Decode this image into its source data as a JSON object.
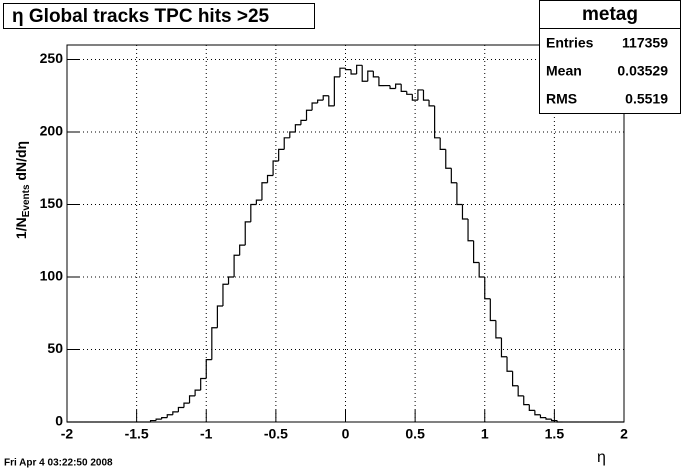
{
  "chart_data": {
    "type": "histogram",
    "title": "η Global tracks TPC hits >25",
    "x_label": "η",
    "y_label": [
      "1/N",
      "Events",
      " dN/dη"
    ],
    "footer": "Fri Apr  4 03:22:50 2008",
    "color": "#000000",
    "grid": true,
    "bins": [
      -2,
      -1.96,
      -1.92,
      -1.88,
      -1.84,
      -1.8,
      -1.76,
      -1.72,
      -1.68,
      -1.64,
      -1.6,
      -1.56,
      -1.52,
      -1.48,
      -1.44,
      -1.4,
      -1.36,
      -1.32,
      -1.28,
      -1.24,
      -1.2,
      -1.16,
      -1.12,
      -1.08,
      -1.04,
      -1,
      -0.96,
      -0.92,
      -0.88,
      -0.84,
      -0.8,
      -0.76,
      -0.72,
      -0.68,
      -0.64,
      -0.6,
      -0.56,
      -0.52,
      -0.48,
      -0.44,
      -0.4,
      -0.36,
      -0.32,
      -0.28,
      -0.24,
      -0.2,
      -0.16,
      -0.12,
      -0.08,
      -0.04,
      0,
      0.04,
      0.08,
      0.12,
      0.16,
      0.2,
      0.24,
      0.28,
      0.32,
      0.36,
      0.4,
      0.44,
      0.48,
      0.52,
      0.56,
      0.6,
      0.64,
      0.68,
      0.72,
      0.76,
      0.8,
      0.84,
      0.88,
      0.92,
      0.96,
      1,
      1.04,
      1.08,
      1.12,
      1.16,
      1.2,
      1.24,
      1.28,
      1.32,
      1.36,
      1.4,
      1.44,
      1.48,
      1.52,
      1.56,
      1.6,
      1.64,
      1.68,
      1.72,
      1.76,
      1.8,
      1.84,
      1.88,
      1.92,
      1.96,
      2
    ],
    "values": [
      0,
      0,
      0,
      0,
      0,
      0,
      0,
      0,
      0,
      0,
      0,
      0,
      0,
      0,
      0,
      1,
      2,
      3,
      5,
      7,
      10,
      13,
      18,
      22,
      30,
      43,
      65,
      80,
      95,
      100,
      115,
      122,
      138,
      150,
      153,
      165,
      170,
      180,
      188,
      196,
      200,
      205,
      208,
      215,
      220,
      222,
      225,
      218,
      238,
      244,
      243,
      240,
      246,
      235,
      242,
      238,
      232,
      232,
      230,
      233,
      228,
      226,
      222,
      229,
      222,
      218,
      196,
      188,
      175,
      165,
      150,
      140,
      125,
      110,
      100,
      85,
      70,
      58,
      45,
      35,
      25,
      18,
      12,
      8,
      5,
      3,
      2,
      1,
      0,
      0,
      0,
      0,
      0,
      0,
      0,
      0,
      0,
      0,
      0,
      0
    ],
    "xlim": [
      -2,
      2
    ],
    "xticks": [
      -2,
      -1.5,
      -1,
      -0.5,
      0,
      0.5,
      1,
      1.5,
      2
    ],
    "ylim": [
      0,
      260
    ],
    "yticks": [
      0,
      50,
      100,
      150,
      200,
      250
    ],
    "stats": {
      "title": "metag",
      "rows": [
        [
          "Entries",
          117359
        ],
        [
          "Mean",
          0.03529
        ],
        [
          "RMS",
          0.5519
        ]
      ]
    }
  }
}
